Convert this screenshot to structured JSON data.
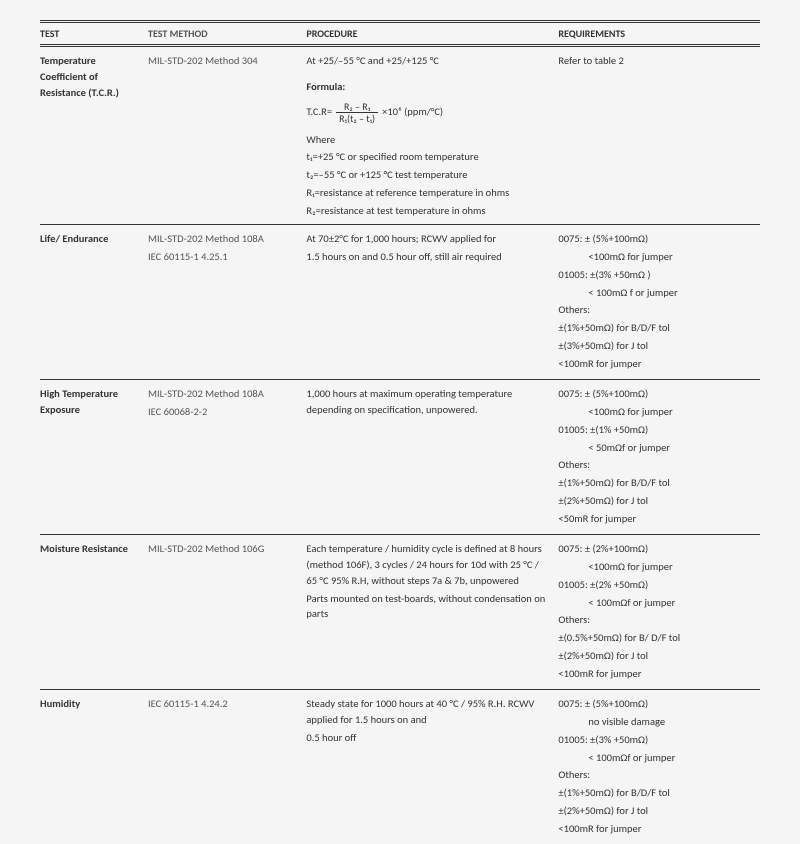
{
  "headers": {
    "test": "TEST",
    "method": "TEST METHOD",
    "procedure": "PROCEDURE",
    "requirements": "REQUIREMENTS"
  },
  "rows": [
    {
      "test": "Temperature Coefficient of Resistance (T.C.R.)",
      "method": "MIL-STD-202 Method 304",
      "proc_intro": "At +25/–55 °C and +25/+125 °C",
      "formula_label": "Formula:",
      "tcr_prefix": "T.C.R=",
      "frac_num": "R₂ – R₁",
      "frac_den": "R₁(t₂ – t₁)",
      "tcr_suffix": " ×10⁶ (ppm/°C)",
      "where": "Where",
      "w1": "t₁=+25 °C or specified room temperature",
      "w2": "t₂=–55 °C or +125 °C test temperature",
      "w3": "R₁=resistance at reference temperature in ohms",
      "w4": "R₂=resistance at test temperature in ohms",
      "req": "Refer to table 2"
    },
    {
      "test": "Life/ Endurance",
      "method1": "MIL-STD-202  Method 108A",
      "method2": "IEC 60115-1 4.25.1",
      "proc1": "At 70±2°C for 1,000 hours; RCWV applied for",
      "proc2": "1.5 hours on and 0.5 hour off, still air required",
      "r1": "0075: ± (5%+100mΩ)",
      "r1b": "<100mΩ  for jumper",
      "r2": "01005: ±(3% +50mΩ )",
      "r2b": "< 100mΩ f or jumper",
      "r3": "Others:",
      "r4": "±(1%+50mΩ) for B/D/F tol",
      "r5": "±(3%+50mΩ) for J tol",
      "r6": "<100mR for jumper"
    },
    {
      "test": "High Temperature Exposure",
      "method1": "MIL-STD-202 Method 108A",
      "method2": "IEC 60068-2-2",
      "proc1": "1,000 hours at maximum operating temperature depending on specification, unpowered.",
      "r1": "0075: ± (5%+100mΩ)",
      "r1b": "<100mΩ  for jumper",
      "r2": "01005: ±(1% +50mΩ)",
      "r2b": "< 50mΩf or jumper",
      "r3": "Others:",
      "r4": "±(1%+50mΩ) for B/D/F tol",
      "r5": "±(2%+50mΩ) for J tol",
      "r6": "<50mR for jumper"
    },
    {
      "test": "Moisture Resistance",
      "method1": "MIL-STD-202  Method 106G",
      "proc1": "Each temperature / humidity cycle is defined at 8 hours (method 106F), 3 cycles / 24 hours for 10d with 25 °C / 65 °C 95% R.H, without steps 7a & 7b, unpowered",
      "proc2": "Parts mounted on test-boards, without condensation on parts",
      "r1": "0075: ± (2%+100mΩ)",
      "r1b": "<100mΩ  for jumper",
      "r2": "01005: ±(2% +50mΩ)",
      "r2b": "< 100mΩf or jumper",
      "r3": "Others:",
      "r4": "±(0.5%+50mΩ) for B/ D/F tol",
      "r5": "±(2%+50mΩ) for J tol",
      "r6": "<100mR for jumper"
    },
    {
      "test": "Humidity",
      "method1": "IEC 60115-1 4.24.2",
      "proc1": "Steady state for 1000 hours at 40 °C / 95% R.H. RCWV applied for 1.5 hours on and",
      "proc2": "0.5 hour off",
      "r1": "0075: ± (5%+100mΩ)",
      "r1b": "no visible damage",
      "r2": "01005: ±(3% +50mΩ)",
      "r2b": "< 100mΩf or jumper",
      "r3": "Others:",
      "r4": "±(1%+50mΩ) for B/D/F tol",
      "r5": "±(2%+50mΩ) for J tol",
      "r6": "<100mR for jumper"
    }
  ],
  "colors": {
    "text": "#333333",
    "bg": "#f5f5f5",
    "muted": "#555555"
  },
  "fontsize": 10.5
}
